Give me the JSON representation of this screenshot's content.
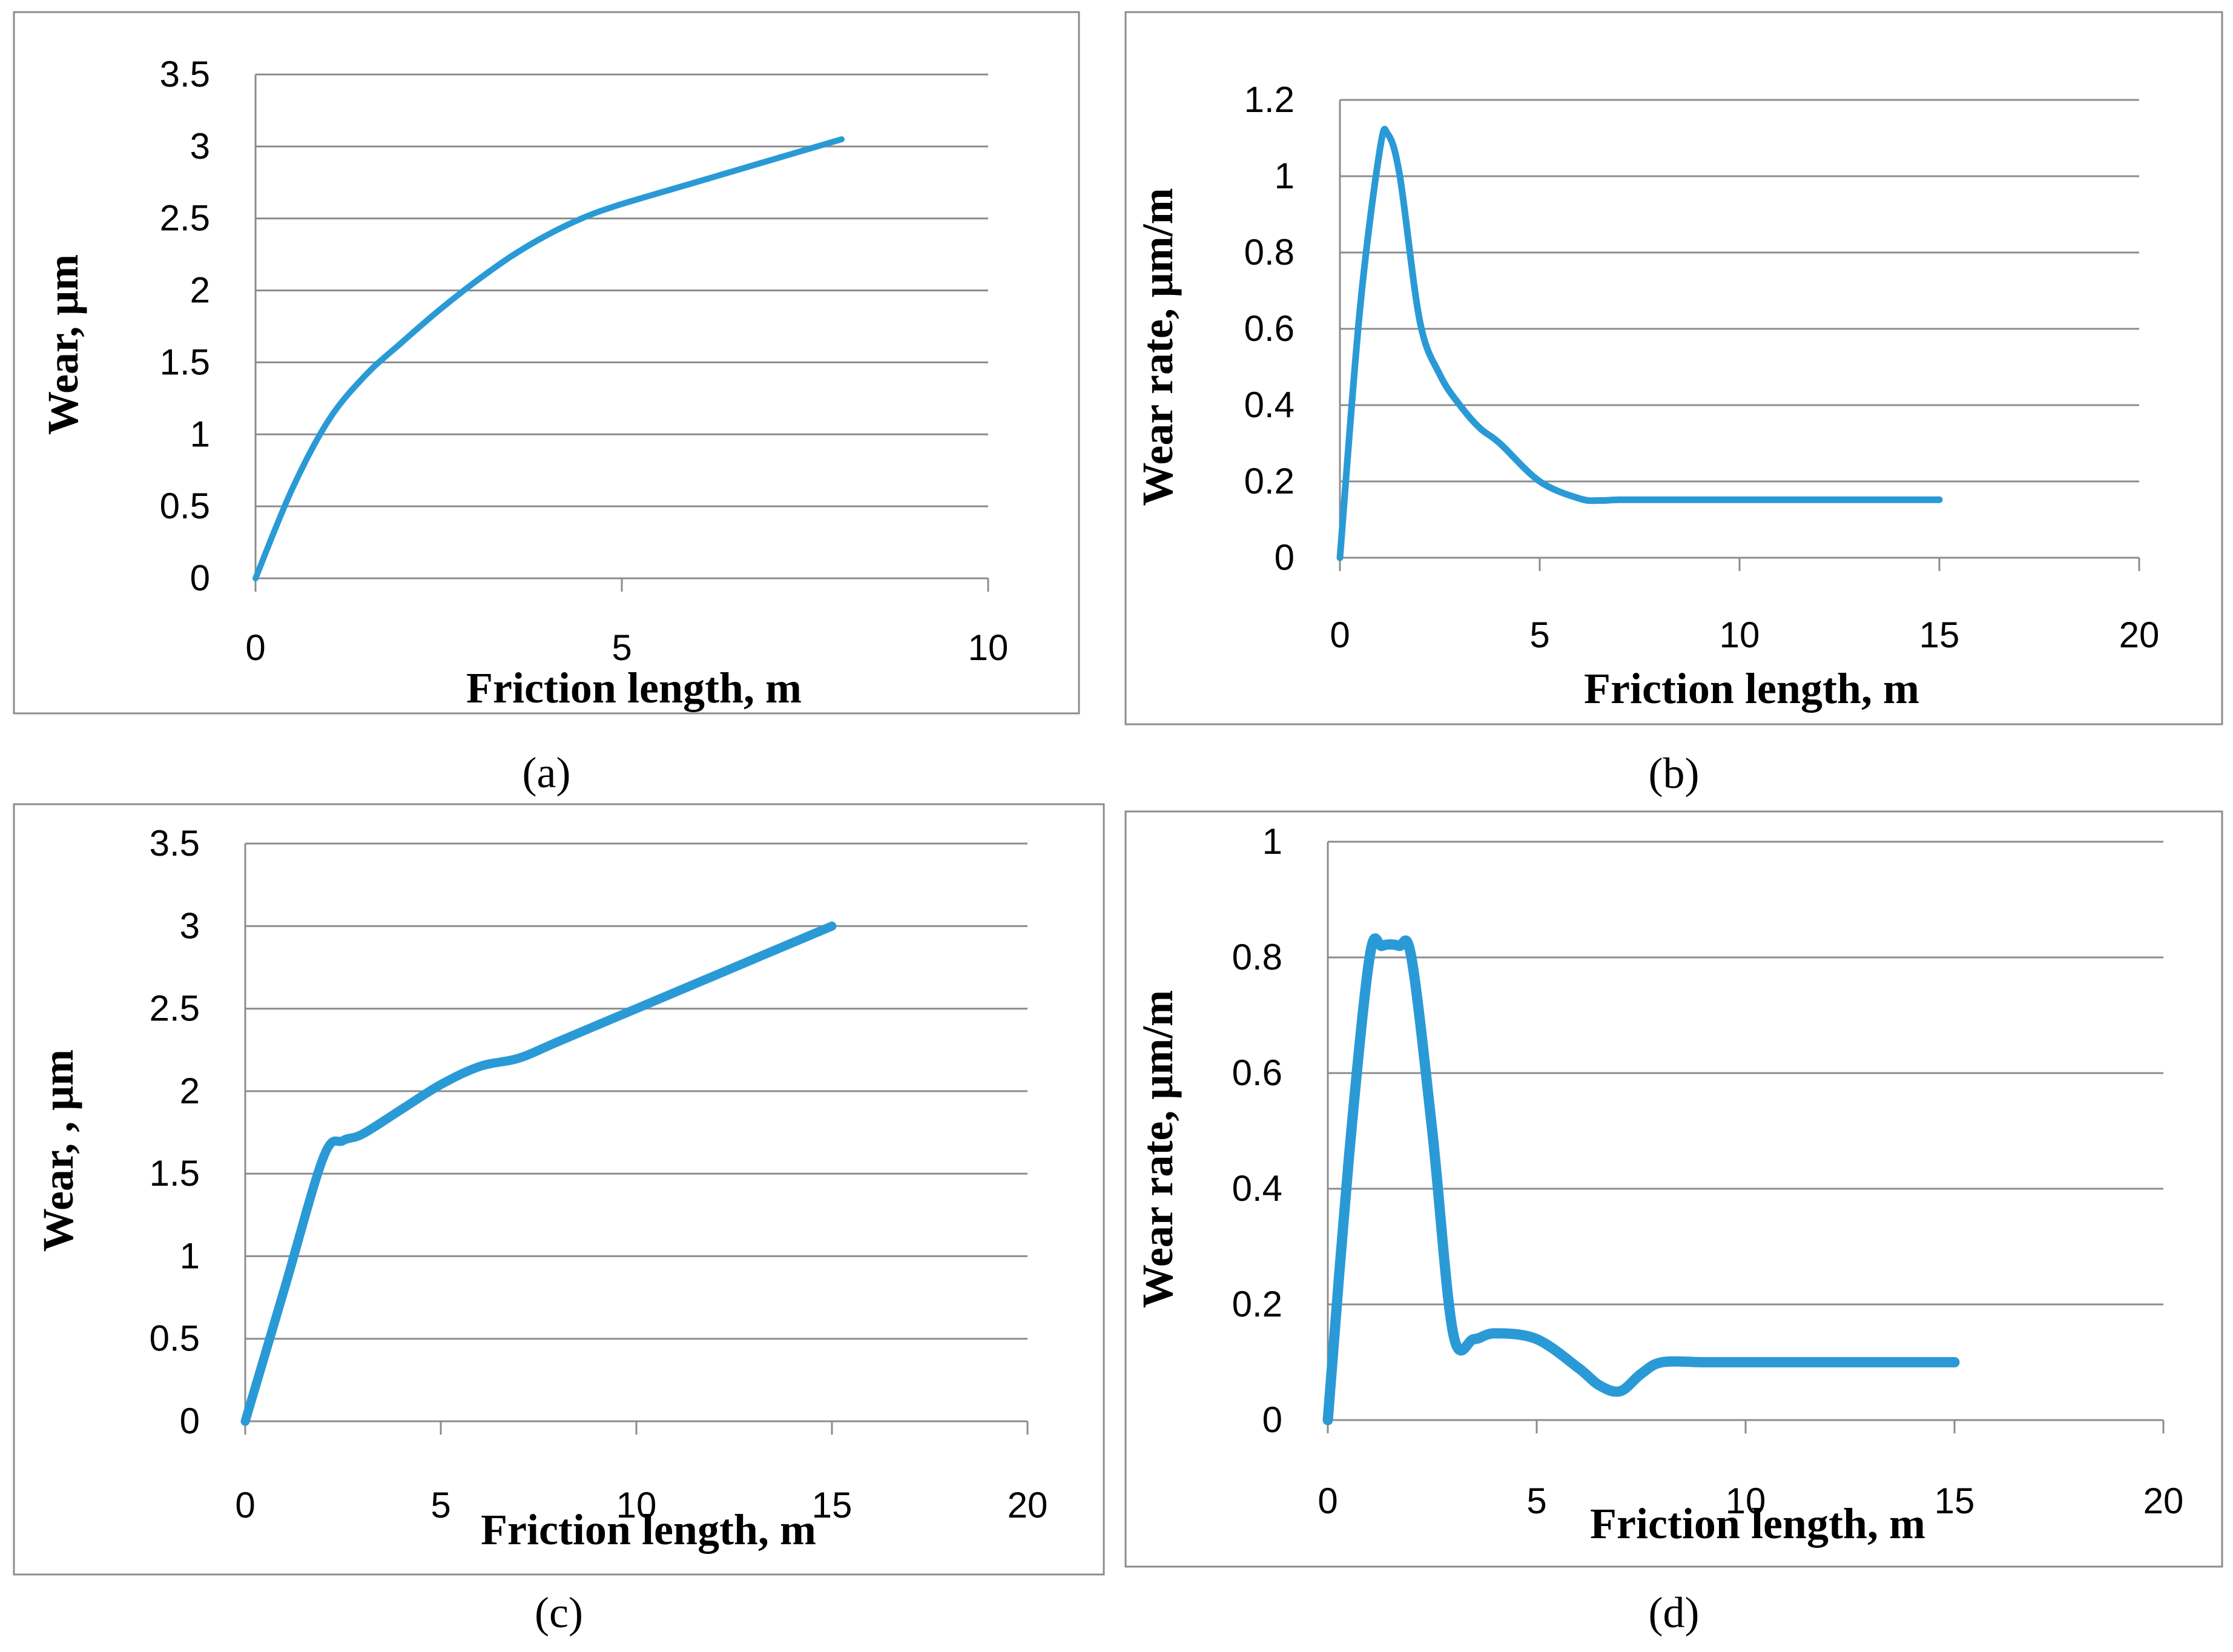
{
  "figure": {
    "line_color": "#2a9ad6",
    "grid_color": "#8c8c8c",
    "frame_color": "#8c8c8c"
  },
  "chart_data": [
    {
      "panel": "a",
      "caption": "(a)",
      "type": "line",
      "xlabel": "Friction length, m",
      "ylabel": "Wear, μm",
      "xlim": [
        0,
        10
      ],
      "ylim": [
        0,
        3.5
      ],
      "xticks": [
        "0",
        "5",
        "10"
      ],
      "yticks": [
        "0",
        "0.5",
        "1",
        "1.5",
        "2",
        "2.5",
        "3",
        "3.5"
      ],
      "grid": true,
      "series": [
        {
          "name": "Wear",
          "x": [
            0,
            0.5,
            1,
            1.5,
            2,
            2.5,
            3,
            3.5,
            4,
            4.5,
            5,
            6,
            7,
            8
          ],
          "y": [
            0,
            0.62,
            1.1,
            1.41,
            1.64,
            1.86,
            2.06,
            2.24,
            2.39,
            2.51,
            2.6,
            2.75,
            2.9,
            3.05
          ]
        }
      ]
    },
    {
      "panel": "b",
      "caption": "(b)",
      "type": "line",
      "xlabel": "Friction length, m",
      "ylabel": "Wear rate, μm/m",
      "xlim": [
        0,
        20
      ],
      "ylim": [
        0,
        1.2
      ],
      "xticks": [
        "0",
        "5",
        "10",
        "15",
        "20"
      ],
      "yticks": [
        "0",
        "0.2",
        "0.4",
        "0.6",
        "0.8",
        "1",
        "1.2"
      ],
      "grid": true,
      "series": [
        {
          "name": "Wear rate",
          "x": [
            0,
            0.5,
            1,
            1.2,
            1.5,
            2,
            2.5,
            3,
            3.5,
            4,
            5,
            6,
            6.5,
            7,
            8,
            10,
            12,
            15
          ],
          "y": [
            0,
            0.65,
            1.07,
            1.11,
            1.0,
            0.62,
            0.48,
            0.4,
            0.34,
            0.3,
            0.2,
            0.155,
            0.15,
            0.152,
            0.152,
            0.152,
            0.152,
            0.152
          ]
        }
      ]
    },
    {
      "panel": "c",
      "caption": "(c)",
      "type": "line",
      "xlabel": "Friction length, m",
      "ylabel": "Wear, , μm",
      "xlim": [
        0,
        20
      ],
      "ylim": [
        0,
        3.5
      ],
      "xticks": [
        "0",
        "5",
        "10",
        "15",
        "20"
      ],
      "yticks": [
        "0",
        "0.5",
        "1",
        "1.5",
        "2",
        "2.5",
        "3",
        "3.5"
      ],
      "grid": true,
      "series": [
        {
          "name": "Wear",
          "x": [
            0,
            1,
            2,
            2.5,
            3,
            4,
            5,
            6,
            7,
            8,
            10,
            12,
            15
          ],
          "y": [
            0,
            0.8,
            1.6,
            1.7,
            1.74,
            1.89,
            2.04,
            2.15,
            2.2,
            2.3,
            2.5,
            2.7,
            3.0
          ]
        }
      ]
    },
    {
      "panel": "d",
      "caption": "(d)",
      "type": "line",
      "xlabel": "Friction length, m",
      "ylabel": "Wear rate, μm/m",
      "xlim": [
        0,
        20
      ],
      "ylim": [
        0,
        1
      ],
      "xticks": [
        "0",
        "5",
        "10",
        "15",
        "20"
      ],
      "yticks": [
        "0",
        "0.2",
        "0.4",
        "0.6",
        "0.8",
        "1"
      ],
      "grid": true,
      "series": [
        {
          "name": "Wear rate",
          "x": [
            0,
            0.5,
            1,
            1.3,
            1.7,
            2,
            2.5,
            3,
            3.5,
            4,
            5,
            6,
            6.5,
            7,
            7.5,
            8,
            9,
            10,
            12,
            15
          ],
          "y": [
            0,
            0.45,
            0.8,
            0.82,
            0.82,
            0.8,
            0.5,
            0.15,
            0.14,
            0.15,
            0.14,
            0.09,
            0.06,
            0.05,
            0.08,
            0.1,
            0.1,
            0.1,
            0.1,
            0.1
          ]
        }
      ]
    }
  ]
}
